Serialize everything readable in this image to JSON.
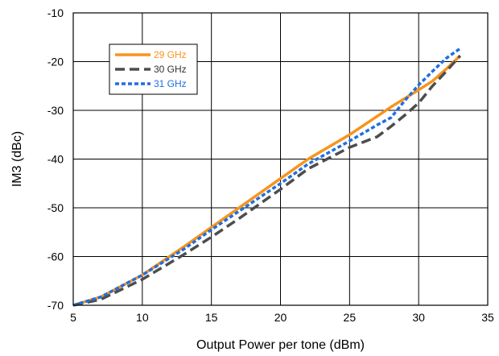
{
  "chart_data": {
    "type": "line",
    "xlabel": "Output Power per tone (dBm)",
    "ylabel": "IM3 (dBc)",
    "xlim": [
      5,
      35
    ],
    "ylim": [
      -70,
      -10
    ],
    "xticks": [
      "5",
      "10",
      "15",
      "20",
      "25",
      "30",
      "35"
    ],
    "yticks": [
      "-10",
      "-20",
      "-30",
      "-40",
      "-50",
      "-60",
      "-70"
    ],
    "grid": true,
    "legend_position": "top-left",
    "series": [
      {
        "name": "29 GHz",
        "color": "#f7941d",
        "style": "solid",
        "x": [
          5,
          7,
          10,
          13,
          15,
          17,
          20,
          22,
          25,
          27,
          28,
          30,
          31,
          32,
          33
        ],
        "y": [
          -70,
          -68.3,
          -63.8,
          -58,
          -54,
          -50,
          -44,
          -40,
          -35,
          -31.2,
          -29.3,
          -25.8,
          -24,
          -21.5,
          -18.8
        ]
      },
      {
        "name": "30 GHz",
        "color": "#4d4d4d",
        "style": "dashed",
        "x": [
          5,
          7,
          10,
          13,
          15,
          17,
          20,
          22,
          25,
          27,
          28,
          29,
          30,
          31,
          32,
          33
        ],
        "y": [
          -70,
          -68.8,
          -64.7,
          -59.6,
          -56,
          -52.2,
          -46.2,
          -42,
          -37.6,
          -35.4,
          -33.3,
          -31,
          -28.5,
          -25,
          -22,
          -18.8
        ]
      },
      {
        "name": "31 GHz",
        "color": "#1f6fe0",
        "style": "dotted",
        "x": [
          5,
          7,
          10,
          13,
          15,
          17,
          20,
          22,
          25,
          27,
          28,
          29,
          30,
          31,
          32,
          33
        ],
        "y": [
          -70,
          -68.3,
          -63.8,
          -58.5,
          -54.5,
          -50.7,
          -45,
          -41,
          -36.3,
          -33,
          -31.5,
          -28,
          -24.8,
          -22,
          -19.3,
          -17.3
        ]
      }
    ]
  }
}
